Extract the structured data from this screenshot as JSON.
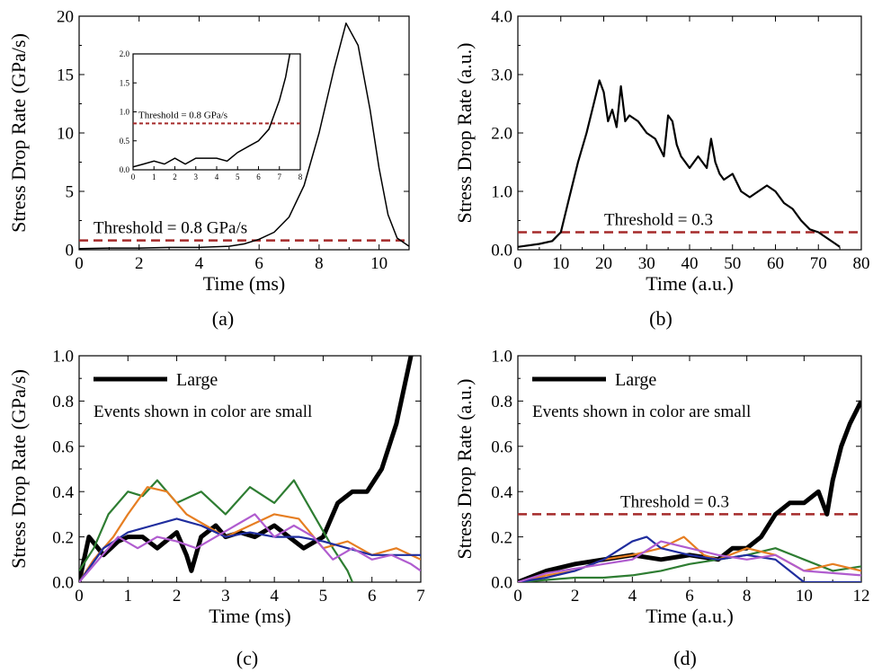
{
  "chart_data": [
    {
      "type": "line",
      "panel": "(a)",
      "xlabel": "Time (ms)",
      "ylabel": "Stress Drop Rate (GPa/s)",
      "xlim": [
        0,
        11
      ],
      "ylim": [
        0,
        20
      ],
      "xticks": [
        0,
        2,
        4,
        6,
        8,
        10
      ],
      "yticks": [
        0,
        5,
        10,
        15,
        20
      ],
      "series": [
        {
          "color": "#000000",
          "x": [
            0,
            1,
            2,
            3,
            4,
            5,
            5.5,
            6,
            6.5,
            7,
            7.5,
            8,
            8.5,
            8.9,
            9.3,
            9.7,
            10,
            10.3,
            10.6,
            11
          ],
          "y": [
            0.1,
            0.15,
            0.15,
            0.2,
            0.2,
            0.3,
            0.5,
            0.9,
            1.5,
            2.8,
            5.5,
            10,
            15.5,
            19.4,
            17.5,
            12,
            7,
            3,
            1,
            0.3
          ]
        }
      ],
      "threshold": {
        "value": 0.8,
        "label": "Threshold = 0.8 GPa/s",
        "color": "#a52a2a"
      },
      "inset": {
        "xlim": [
          0,
          8
        ],
        "ylim": [
          0,
          2.0
        ],
        "xticks": [
          0,
          1,
          2,
          3,
          4,
          5,
          6,
          7,
          8
        ],
        "yticks": [
          "0.0",
          "0.5",
          "1.0",
          "1.5",
          "2.0"
        ],
        "x": [
          0,
          0.5,
          1,
          1.5,
          2,
          2.5,
          3,
          3.5,
          4,
          4.5,
          5,
          5.5,
          6,
          6.5,
          7,
          7.3,
          7.5
        ],
        "y": [
          0.05,
          0.1,
          0.15,
          0.1,
          0.2,
          0.1,
          0.2,
          0.2,
          0.2,
          0.15,
          0.3,
          0.4,
          0.5,
          0.7,
          1.2,
          1.6,
          2.0
        ],
        "threshold_label": "Threshold = 0.8 GPa/s"
      }
    },
    {
      "type": "line",
      "panel": "(b)",
      "xlabel": "Time (a.u.)",
      "ylabel": "Stress Drop Rate (a.u.)",
      "xlim": [
        0,
        80
      ],
      "ylim": [
        0,
        4.0
      ],
      "xticks": [
        0,
        10,
        20,
        30,
        40,
        50,
        60,
        70,
        80
      ],
      "yticks": [
        "0.0",
        "1.0",
        "2.0",
        "3.0",
        "4.0"
      ],
      "series": [
        {
          "color": "#000000",
          "x": [
            0,
            5,
            8,
            10,
            12,
            14,
            16,
            18,
            19,
            20,
            21,
            22,
            23,
            24,
            25,
            26,
            28,
            30,
            32,
            34,
            35,
            36,
            37,
            38,
            40,
            42,
            44,
            45,
            46,
            47,
            48,
            50,
            52,
            54,
            56,
            58,
            60,
            62,
            64,
            66,
            68,
            70,
            72,
            74,
            75
          ],
          "y": [
            0.05,
            0.1,
            0.15,
            0.3,
            0.9,
            1.5,
            2.0,
            2.6,
            2.9,
            2.7,
            2.2,
            2.4,
            2.1,
            2.8,
            2.2,
            2.3,
            2.2,
            2.0,
            1.9,
            1.6,
            2.3,
            2.2,
            1.8,
            1.6,
            1.4,
            1.6,
            1.4,
            1.9,
            1.5,
            1.3,
            1.2,
            1.3,
            1.0,
            0.9,
            1.0,
            1.1,
            1.0,
            0.8,
            0.7,
            0.5,
            0.35,
            0.3,
            0.2,
            0.1,
            0.05
          ]
        }
      ],
      "threshold": {
        "value": 0.3,
        "label": "Threshold = 0.3",
        "color": "#a52a2a"
      }
    },
    {
      "type": "line",
      "panel": "(c)",
      "xlabel": "Time (ms)",
      "ylabel": "Stress Drop Rate (GPa/s)",
      "xlim": [
        0,
        7
      ],
      "ylim": [
        0,
        1.0
      ],
      "xticks": [
        0,
        1,
        2,
        3,
        4,
        5,
        6,
        7
      ],
      "yticks": [
        "0.0",
        "0.2",
        "0.4",
        "0.6",
        "0.8",
        "1.0"
      ],
      "legend": {
        "large_label": "Large",
        "note": "Events shown in color are small",
        "note_color": "#a52a2a"
      },
      "series": [
        {
          "name": "Large",
          "color": "#000000",
          "width": 5,
          "x": [
            0,
            0.2,
            0.5,
            0.8,
            1.0,
            1.3,
            1.6,
            2.0,
            2.2,
            2.3,
            2.5,
            2.8,
            3.0,
            3.3,
            3.6,
            4.0,
            4.3,
            4.6,
            5.0,
            5.3,
            5.6,
            5.9,
            6.2,
            6.5,
            6.8
          ],
          "y": [
            0.0,
            0.2,
            0.12,
            0.18,
            0.2,
            0.2,
            0.15,
            0.22,
            0.12,
            0.05,
            0.2,
            0.25,
            0.2,
            0.22,
            0.2,
            0.25,
            0.2,
            0.15,
            0.2,
            0.35,
            0.4,
            0.4,
            0.5,
            0.7,
            1.0
          ]
        },
        {
          "color": "#2e7d32",
          "x": [
            0,
            0.3,
            0.6,
            1.0,
            1.3,
            1.6,
            2.0,
            2.5,
            3.0,
            3.5,
            4.0,
            4.4,
            4.8,
            5.2,
            5.5,
            5.6
          ],
          "y": [
            0.05,
            0.15,
            0.3,
            0.4,
            0.38,
            0.45,
            0.35,
            0.4,
            0.3,
            0.42,
            0.35,
            0.45,
            0.3,
            0.15,
            0.05,
            0.0
          ]
        },
        {
          "color": "#e67e22",
          "x": [
            0,
            0.3,
            0.7,
            1.0,
            1.4,
            1.8,
            2.2,
            2.6,
            3.0,
            3.5,
            4.0,
            4.5,
            5.0,
            5.5,
            6.0,
            6.5,
            7.0
          ],
          "y": [
            0.0,
            0.1,
            0.2,
            0.3,
            0.42,
            0.4,
            0.3,
            0.25,
            0.2,
            0.25,
            0.3,
            0.28,
            0.15,
            0.18,
            0.12,
            0.15,
            0.1
          ]
        },
        {
          "color": "#1f2d9e",
          "x": [
            0,
            0.5,
            1.0,
            1.5,
            2.0,
            2.5,
            3.0,
            3.5,
            4.0,
            4.5,
            5.0,
            5.5,
            6.0,
            6.5,
            7.0
          ],
          "y": [
            0.0,
            0.15,
            0.22,
            0.25,
            0.28,
            0.25,
            0.2,
            0.22,
            0.2,
            0.2,
            0.18,
            0.15,
            0.12,
            0.12,
            0.12
          ]
        },
        {
          "color": "#b05ccf",
          "x": [
            0,
            0.4,
            0.8,
            1.2,
            1.6,
            2.0,
            2.4,
            2.8,
            3.2,
            3.6,
            4.0,
            4.4,
            4.8,
            5.2,
            5.6,
            6.0,
            6.4,
            6.8,
            7.0
          ],
          "y": [
            0.0,
            0.1,
            0.2,
            0.15,
            0.2,
            0.18,
            0.15,
            0.2,
            0.25,
            0.3,
            0.2,
            0.25,
            0.2,
            0.1,
            0.15,
            0.1,
            0.12,
            0.08,
            0.05
          ]
        }
      ]
    },
    {
      "type": "line",
      "panel": "(d)",
      "xlabel": "Time (a.u.)",
      "ylabel": "Stress Drop Rate (a.u.)",
      "xlim": [
        0,
        12
      ],
      "ylim": [
        0,
        1.0
      ],
      "xticks": [
        0,
        2,
        4,
        6,
        8,
        10,
        12
      ],
      "yticks": [
        "0.0",
        "0.2",
        "0.4",
        "0.6",
        "0.8",
        "1.0"
      ],
      "threshold": {
        "value": 0.3,
        "label": "Threshold = 0.3",
        "color": "#a52a2a"
      },
      "legend": {
        "large_label": "Large",
        "note": "Events shown in color are small",
        "note_color": "#a52a2a"
      },
      "series": [
        {
          "name": "Large",
          "color": "#000000",
          "width": 5,
          "x": [
            0,
            1,
            2,
            3,
            4,
            5,
            6,
            7,
            7.5,
            8,
            8.5,
            9,
            9.5,
            10,
            10.5,
            10.8,
            11,
            11.3,
            11.6,
            12
          ],
          "y": [
            0.0,
            0.05,
            0.08,
            0.1,
            0.12,
            0.1,
            0.12,
            0.1,
            0.15,
            0.15,
            0.2,
            0.3,
            0.35,
            0.35,
            0.4,
            0.3,
            0.45,
            0.6,
            0.7,
            0.8
          ]
        },
        {
          "color": "#2e7d32",
          "x": [
            0,
            1,
            2,
            3,
            4,
            5,
            6,
            7,
            8,
            9,
            10,
            11,
            12
          ],
          "y": [
            0.0,
            0.01,
            0.02,
            0.02,
            0.03,
            0.05,
            0.08,
            0.1,
            0.12,
            0.15,
            0.1,
            0.05,
            0.07
          ]
        },
        {
          "color": "#e67e22",
          "x": [
            0,
            1,
            2,
            3,
            4,
            5,
            5.8,
            6.5,
            7,
            8,
            9,
            10,
            11,
            12
          ],
          "y": [
            0.0,
            0.03,
            0.05,
            0.1,
            0.12,
            0.15,
            0.2,
            0.12,
            0.1,
            0.15,
            0.12,
            0.05,
            0.08,
            0.05
          ]
        },
        {
          "color": "#1f2d9e",
          "x": [
            0,
            1,
            2,
            3,
            4,
            4.5,
            5,
            6,
            7,
            8,
            9,
            10,
            11,
            12
          ],
          "y": [
            0.0,
            0.02,
            0.05,
            0.1,
            0.18,
            0.2,
            0.15,
            0.12,
            0.1,
            0.12,
            0.1,
            0.0,
            0.0,
            0.0
          ]
        },
        {
          "color": "#b05ccf",
          "x": [
            0,
            1,
            2,
            3,
            4,
            5,
            6,
            7,
            8,
            9,
            10,
            11,
            12
          ],
          "y": [
            0.0,
            0.04,
            0.06,
            0.08,
            0.1,
            0.18,
            0.15,
            0.12,
            0.1,
            0.12,
            0.05,
            0.04,
            0.03
          ]
        }
      ]
    }
  ]
}
